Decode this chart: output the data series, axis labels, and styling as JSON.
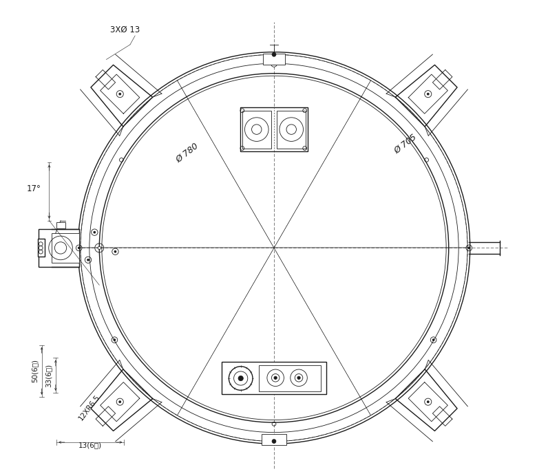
{
  "bg_color": "#ffffff",
  "line_color": "#1a1a1a",
  "dim_labels": {
    "phi780": "Ø 780",
    "phi705": "Ø 705",
    "holes": "3XØ 13",
    "bolt_r": "12XR6.5",
    "dim_50": "50(6处)",
    "dim_33": "33(6处)",
    "dim_13": "13(6处)",
    "angle": "17°"
  },
  "outer_r": 390,
  "inner_r": 350,
  "ring_mid_r": 370,
  "xlim": [
    -490,
    490
  ],
  "ylim": [
    -460,
    500
  ]
}
